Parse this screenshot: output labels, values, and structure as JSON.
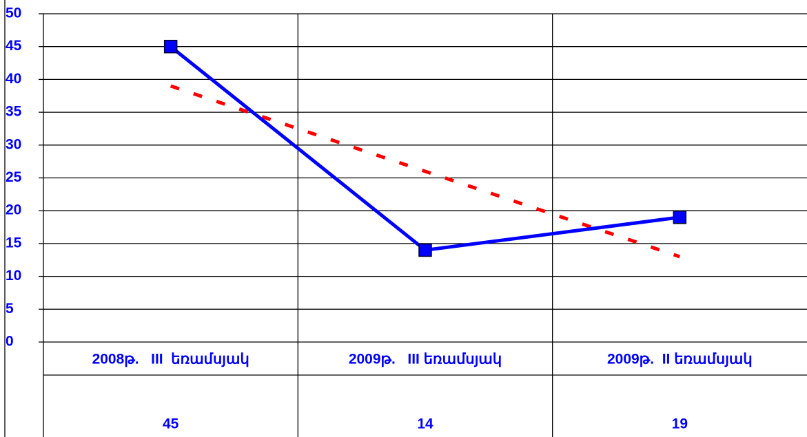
{
  "chart_data": {
    "type": "line",
    "categories": [
      "2008թ.   III  եռամսյակ",
      "2009թ.   III եռամսյակ",
      "2009թ.  II եռամսյակ"
    ],
    "series": [
      {
        "color": "#0000ff",
        "values": [
          45,
          14,
          19
        ]
      }
    ],
    "trendline": {
      "color": "#ff0000",
      "values": [
        39,
        26,
        13
      ]
    },
    "ylim": [
      0,
      50
    ],
    "yticks": [
      0,
      5,
      10,
      15,
      20,
      25,
      30,
      35,
      40,
      45,
      50
    ],
    "grid": true
  }
}
